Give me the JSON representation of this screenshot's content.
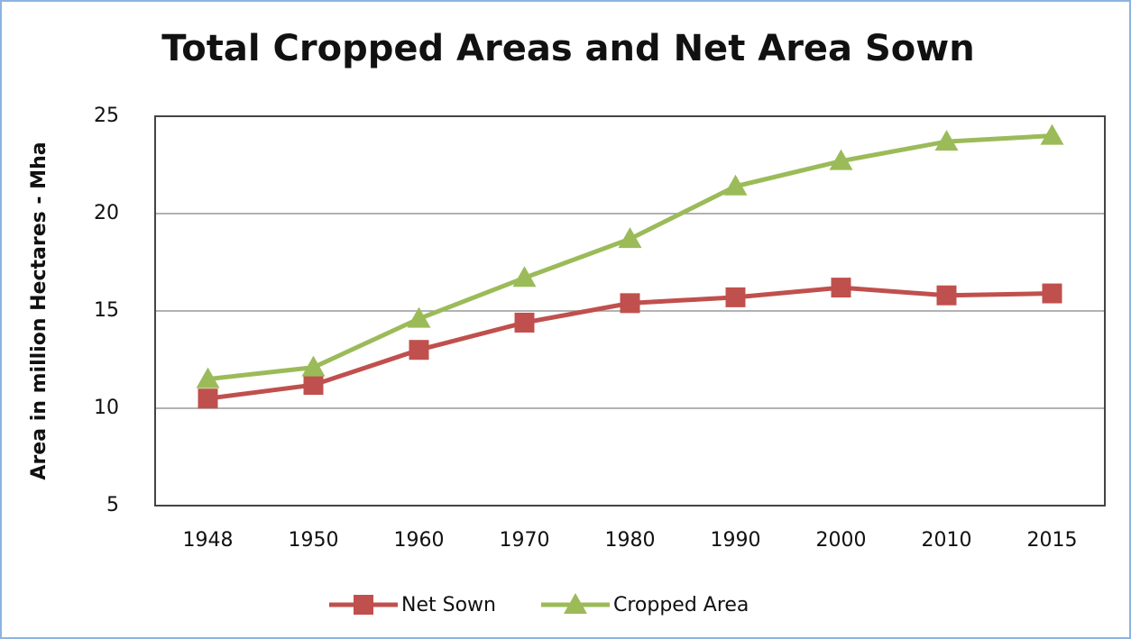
{
  "chart_data": {
    "type": "line",
    "title": "Total Cropped Areas and Net Area Sown",
    "y_label": "Area in million Hectares - Mha",
    "categories": [
      "1948",
      "1950",
      "1960",
      "1970",
      "1980",
      "1990",
      "2000",
      "2010",
      "2015"
    ],
    "series": [
      {
        "name": "Net Sown",
        "color": "#c0504d",
        "marker": "square",
        "values": [
          10.5,
          11.2,
          13.0,
          14.4,
          15.4,
          15.7,
          16.2,
          15.8,
          15.9
        ]
      },
      {
        "name": "Cropped Area",
        "color": "#9bbb59",
        "marker": "triangle",
        "values": [
          11.5,
          12.1,
          14.6,
          16.7,
          18.7,
          21.4,
          22.7,
          23.7,
          24.0
        ]
      }
    ],
    "ylim": [
      5,
      25
    ],
    "yticks": [
      5,
      10,
      15,
      20,
      25
    ],
    "grid": true,
    "legend": "bottom"
  }
}
